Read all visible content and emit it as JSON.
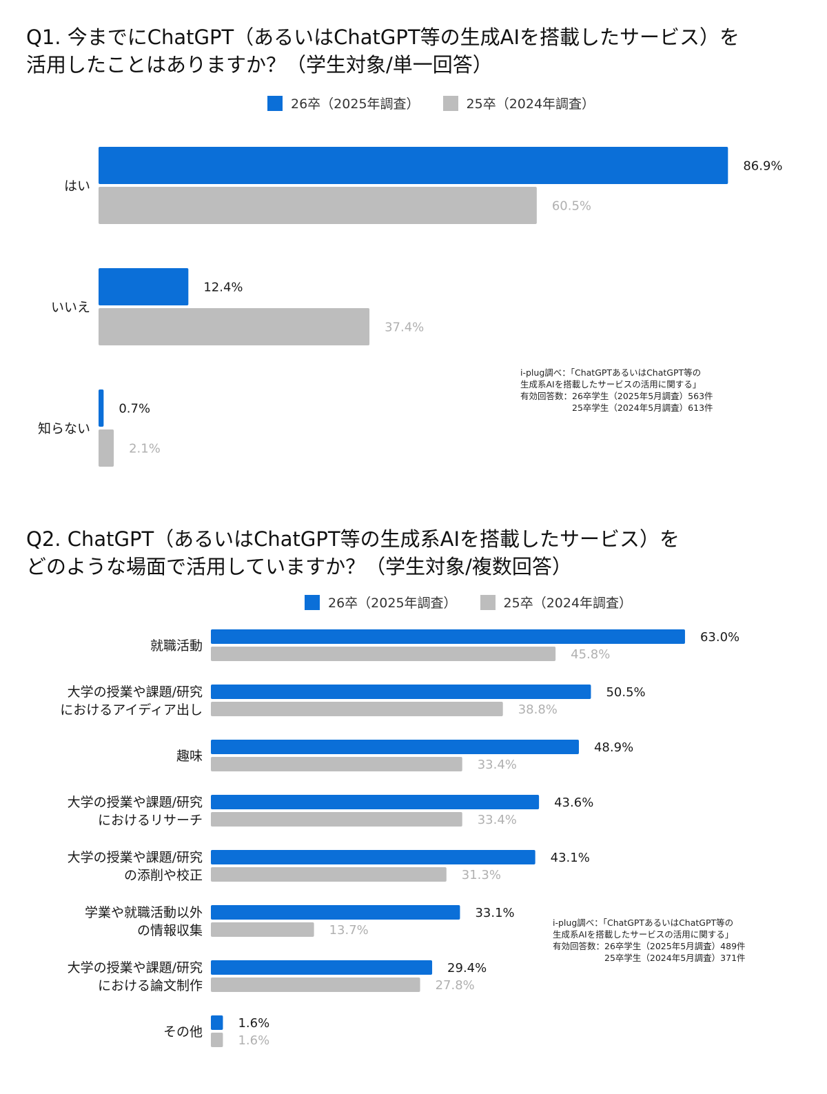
{
  "colors": {
    "series_2025": "#0b6fd8",
    "series_2024": "#bdbdbd",
    "label_2025": "#1a1a1a",
    "label_2024": "#b0b0b0"
  },
  "chart_data": [
    {
      "type": "bar",
      "orientation": "horizontal",
      "title": "Q1. 今までにChatGPT（あるいはChatGPT等の生成AIを搭載したサービス）を\n活用したことはありますか？（学生対象/単一回答）",
      "categories": [
        "はい",
        "いいえ",
        "知らない"
      ],
      "series": [
        {
          "name": "26卒（2025年調査）",
          "values": [
            86.9,
            12.4,
            0.7
          ]
        },
        {
          "name": "25卒（2024年調査）",
          "values": [
            60.5,
            37.4,
            2.1
          ]
        }
      ],
      "value_labels": [
        [
          "86.9%",
          "12.4%",
          "0.7%"
        ],
        [
          "60.5%",
          "37.4%",
          "2.1%"
        ]
      ],
      "xlim": [
        0,
        100
      ],
      "grid": false,
      "legend_position": "top",
      "note": "i-plug調べ：「ChatGPTあるいはChatGPT等の\n生成系AIを搭載したサービスの活用に関する」\n有効回答数：26卒学生（2025年5月調査）563件\n　　　　　　25卒学生（2024年5月調査）613件"
    },
    {
      "type": "bar",
      "orientation": "horizontal",
      "title": "Q2. ChatGPT（あるいはChatGPT等の生成系AIを搭載したサービス）を\nどのような場面で活用していますか？（学生対象/複数回答）",
      "categories": [
        "就職活動",
        "大学の授業や課題/研究\nにおけるアイディア出し",
        "趣味",
        "大学の授業や課題/研究\nにおけるリサーチ",
        "大学の授業や課題/研究\nの添削や校正",
        "学業や就職活動以外\nの情報収集",
        "大学の授業や課題/研究\nにおける論文制作",
        "その他"
      ],
      "series": [
        {
          "name": "26卒（2025年調査）",
          "values": [
            63.0,
            50.5,
            48.9,
            43.6,
            43.1,
            33.1,
            29.4,
            1.6
          ]
        },
        {
          "name": "25卒（2024年調査）",
          "values": [
            45.8,
            38.8,
            33.4,
            33.4,
            31.3,
            13.7,
            27.8,
            1.6
          ]
        }
      ],
      "value_labels": [
        [
          "63.0%",
          "50.5%",
          "48.9%",
          "43.6%",
          "43.1%",
          "33.1%",
          "29.4%",
          "1.6%"
        ],
        [
          "45.8%",
          "38.8%",
          "33.4%",
          "33.4%",
          "31.3%",
          "13.7%",
          "27.8%",
          "1.6%"
        ]
      ],
      "xlim": [
        0,
        100
      ],
      "grid": false,
      "legend_position": "top",
      "note": "i-plug調べ：「ChatGPTあるいはChatGPT等の\n生成系AIを搭載したサービスの活用に関する」\n有効回答数：26卒学生（2025年5月調査）489件\n　　　　　　25卒学生（2024年5月調査）371件"
    }
  ]
}
